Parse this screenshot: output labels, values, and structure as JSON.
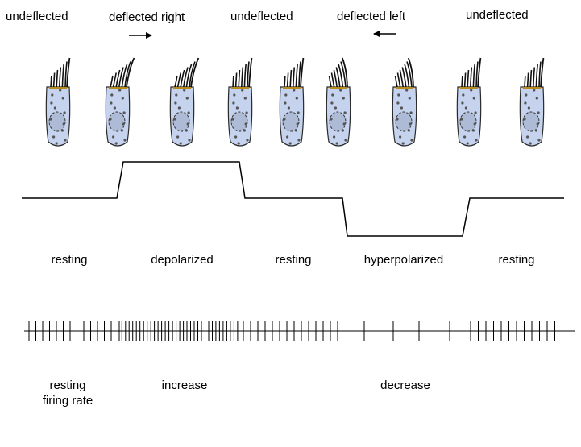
{
  "stimulus_labels": [
    "undeflected",
    "deflected right",
    "undeflected",
    "deflected left",
    "undeflected"
  ],
  "arrows": [
    "right-arrow",
    "left-arrow"
  ],
  "membrane_states": [
    "resting",
    "depolarized",
    "resting",
    "hyperpolarized",
    "resting"
  ],
  "firing_labels": {
    "resting_line1": "resting",
    "resting_line2": "firing rate",
    "increase": "increase",
    "decrease": "decrease"
  },
  "hair_cells": [
    {
      "deflection": "none"
    },
    {
      "deflection": "right"
    },
    {
      "deflection": "right"
    },
    {
      "deflection": "none"
    },
    {
      "deflection": "none"
    },
    {
      "deflection": "left"
    },
    {
      "deflection": "left"
    },
    {
      "deflection": "none"
    },
    {
      "deflection": "none"
    }
  ],
  "colors": {
    "cell_fill": "#c6d3ee",
    "cell_stroke": "#2a2a2a",
    "nucleus_fill": "#aebbd6",
    "cilia_tip": "#b88a1a",
    "line": "#000000"
  }
}
